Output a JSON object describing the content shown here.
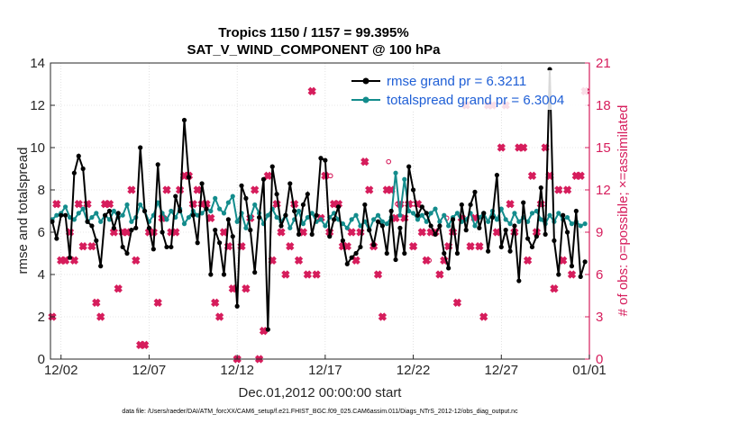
{
  "chart_data": {
    "type": "line",
    "title_line1": "Tropics 1150 / 1157 = 99.395%",
    "title_line2": "SAT_V_WIND_COMPONENT @ 100 hPa",
    "xlabel": "Dec.01,2012 00:00:00 start",
    "ylabel_left": "rmse and totalspread",
    "ylabel_right": "# of obs: o=possible; ×=assimilated",
    "footer": "data file: /Users/raeder/DAI/ATM_forcXX/CAM6_setup/f.e21.FHIST_BGC.f09_025.CAM6assim.011/Diags_NTrS_2012-12/obs_diag_output.nc",
    "xlim": [
      0.4,
      31.0
    ],
    "ylim_left": [
      0,
      14
    ],
    "ylim_right": [
      0,
      21
    ],
    "xtick_values": [
      1,
      6,
      11,
      16,
      21,
      26,
      31
    ],
    "xtick_labels": [
      "12/02",
      "12/07",
      "12/12",
      "12/17",
      "12/22",
      "12/27",
      "01/01"
    ],
    "yticks_left": [
      "0",
      "2",
      "4",
      "6",
      "8",
      "10",
      "12",
      "14"
    ],
    "yticks_right": [
      "0",
      "3",
      "6",
      "9",
      "12",
      "15",
      "18",
      "21"
    ],
    "colors": {
      "rmse": "#000000",
      "spread": "#138c8c",
      "obs": "#d61d5c",
      "legend_text": "#1f5fd6"
    },
    "series": [
      {
        "name": "rmse grand pr = 6.3211",
        "x": [
          0.5,
          0.75,
          1.0,
          1.25,
          1.5,
          1.75,
          2.0,
          2.25,
          2.5,
          2.75,
          3.0,
          3.25,
          3.5,
          3.75,
          4.0,
          4.25,
          4.5,
          4.75,
          5.0,
          5.25,
          5.5,
          5.75,
          6.0,
          6.25,
          6.5,
          6.75,
          7.0,
          7.25,
          7.5,
          7.75,
          8.0,
          8.25,
          8.5,
          8.75,
          9.0,
          9.25,
          9.5,
          9.75,
          10.0,
          10.25,
          10.5,
          10.75,
          11.0,
          11.25,
          11.5,
          11.75,
          12.0,
          12.25,
          12.5,
          12.75,
          13.0,
          13.25,
          13.5,
          13.75,
          14.0,
          14.25,
          14.5,
          14.75,
          15.0,
          15.25,
          15.5,
          15.75,
          16.0,
          16.25,
          16.5,
          16.75,
          17.0,
          17.25,
          17.5,
          17.75,
          18.0,
          18.25,
          18.5,
          18.75,
          19.0,
          19.25,
          19.5,
          19.75,
          20.0,
          20.25,
          20.5,
          20.75,
          21.0,
          21.25,
          21.5,
          21.75,
          22.0,
          22.25,
          22.5,
          22.75,
          23.0,
          23.25,
          23.5,
          23.75,
          24.0,
          24.25,
          24.5,
          24.75,
          25.0,
          25.25,
          25.5,
          25.75,
          26.0,
          26.25,
          26.5,
          26.75,
          27.0,
          27.25,
          27.5,
          27.75,
          28.0,
          28.25,
          28.5,
          28.75,
          29.0,
          29.25,
          29.5,
          29.75,
          30.0,
          30.25,
          30.5,
          30.75
        ],
        "values": [
          6.5,
          5.7,
          6.8,
          6.8,
          4.8,
          8.8,
          9.6,
          9.0,
          6.5,
          6.3,
          5.6,
          4.4,
          6.8,
          7.0,
          6.2,
          6.9,
          5.3,
          5.0,
          6.1,
          6.2,
          10.0,
          7.0,
          6.2,
          5.2,
          9.2,
          6.0,
          5.3,
          5.3,
          7.7,
          7.0,
          11.3,
          8.6,
          6.8,
          5.5,
          8.3,
          7.1,
          4.0,
          6.1,
          5.5,
          4.0,
          6.6,
          5.8,
          2.5,
          8.2,
          7.6,
          6.1,
          4.1,
          6.7,
          8.5,
          1.4,
          9.1,
          7.8,
          6.3,
          6.8,
          8.3,
          7.0,
          5.9,
          7.3,
          7.8,
          5.9,
          6.8,
          9.5,
          9.4,
          5.8,
          6.6,
          7.2,
          5.6,
          4.5,
          4.8,
          5.0,
          5.3,
          7.3,
          6.1,
          5.4,
          6.5,
          6.3,
          5.0,
          7.0,
          4.7,
          6.2,
          5.0,
          9.1,
          8.0,
          6.8,
          7.2,
          6.9,
          6.3,
          5.9,
          6.3,
          5.0,
          4.3,
          6.6,
          5.0,
          7.3,
          6.1,
          7.3,
          7.9,
          6.2,
          6.9,
          5.1,
          6.7,
          8.7,
          5.3,
          6.1,
          5.1,
          6.3,
          3.7,
          7.4,
          5.7,
          5.3,
          5.8,
          8.1,
          5.9,
          13.7,
          5.6,
          4.0,
          6.8,
          6.0,
          4.4,
          7.0,
          3.9,
          4.6
        ]
      },
      {
        "name": "totalspread grand pr = 6.3004",
        "x": [
          0.5,
          0.75,
          1.0,
          1.25,
          1.5,
          1.75,
          2.0,
          2.25,
          2.5,
          2.75,
          3.0,
          3.25,
          3.5,
          3.75,
          4.0,
          4.25,
          4.5,
          4.75,
          5.0,
          5.25,
          5.5,
          5.75,
          6.0,
          6.25,
          6.5,
          6.75,
          7.0,
          7.25,
          7.5,
          7.75,
          8.0,
          8.25,
          8.5,
          8.75,
          9.0,
          9.25,
          9.5,
          9.75,
          10.0,
          10.25,
          10.5,
          10.75,
          11.0,
          11.25,
          11.5,
          11.75,
          12.0,
          12.25,
          12.5,
          12.75,
          13.0,
          13.25,
          13.5,
          13.75,
          14.0,
          14.25,
          14.5,
          14.75,
          15.0,
          15.25,
          15.5,
          15.75,
          16.0,
          16.25,
          16.5,
          16.75,
          17.0,
          17.25,
          17.5,
          17.75,
          18.0,
          18.25,
          18.5,
          18.75,
          19.0,
          19.25,
          19.5,
          19.75,
          20.0,
          20.25,
          20.5,
          20.75,
          21.0,
          21.25,
          21.5,
          21.75,
          22.0,
          22.25,
          22.5,
          22.75,
          23.0,
          23.25,
          23.5,
          23.75,
          24.0,
          24.25,
          24.5,
          24.75,
          25.0,
          25.25,
          25.5,
          25.75,
          26.0,
          26.25,
          26.5,
          26.75,
          27.0,
          27.25,
          27.5,
          27.75,
          28.0,
          28.25,
          28.5,
          28.75,
          29.0,
          29.25,
          29.5,
          29.75,
          30.0,
          30.25,
          30.5,
          30.75
        ],
        "values": [
          6.6,
          6.8,
          6.9,
          7.2,
          6.7,
          6.6,
          6.9,
          7.1,
          6.5,
          6.7,
          6.9,
          6.5,
          6.8,
          6.6,
          7.0,
          6.7,
          6.8,
          7.3,
          6.5,
          6.7,
          7.3,
          7.0,
          6.5,
          6.8,
          7.4,
          6.9,
          6.6,
          7.0,
          6.7,
          7.1,
          6.4,
          6.7,
          7.0,
          6.8,
          6.9,
          7.1,
          7.0,
          7.6,
          7.1,
          6.9,
          7.4,
          7.7,
          6.5,
          6.9,
          6.2,
          6.7,
          7.3,
          6.9,
          6.4,
          6.8,
          7.1,
          6.7,
          6.5,
          6.8,
          6.2,
          6.6,
          7.0,
          6.4,
          6.7,
          6.9,
          6.5,
          6.6,
          6.3,
          6.7,
          6.9,
          6.6,
          6.4,
          6.2,
          6.6,
          6.8,
          6.3,
          6.5,
          6.1,
          6.6,
          6.8,
          6.5,
          6.4,
          6.7,
          8.8,
          6.8,
          8.5,
          7.0,
          6.9,
          6.6,
          6.8,
          6.5,
          6.9,
          7.1,
          6.5,
          6.8,
          6.3,
          6.7,
          6.9,
          6.5,
          6.6,
          6.9,
          6.3,
          6.7,
          6.9,
          6.5,
          7.0,
          6.6,
          7.1,
          6.6,
          6.4,
          6.9,
          6.5,
          6.7,
          6.5,
          6.9,
          7.0,
          6.6,
          6.4,
          6.8,
          6.5,
          6.9,
          6.6,
          6.7,
          6.4,
          6.5,
          6.3,
          6.4
        ]
      },
      {
        "name": "obs_assimilated",
        "x": [
          0.5,
          0.75,
          1.0,
          1.25,
          1.5,
          1.75,
          2.0,
          2.25,
          2.5,
          2.75,
          3.0,
          3.25,
          3.5,
          3.75,
          4.0,
          4.25,
          4.5,
          4.75,
          5.0,
          5.25,
          5.5,
          5.75,
          6.0,
          6.25,
          6.5,
          6.75,
          7.0,
          7.25,
          7.5,
          7.75,
          8.0,
          8.25,
          8.5,
          8.75,
          9.0,
          9.25,
          9.5,
          9.75,
          10.0,
          10.25,
          10.5,
          10.75,
          11.0,
          11.25,
          11.5,
          11.75,
          12.0,
          12.25,
          12.5,
          12.75,
          13.0,
          13.25,
          13.5,
          13.75,
          14.0,
          14.25,
          14.5,
          14.75,
          15.0,
          15.25,
          15.5,
          15.75,
          16.0,
          16.25,
          16.5,
          16.75,
          17.0,
          17.25,
          17.5,
          17.75,
          18.0,
          18.25,
          18.5,
          18.75,
          19.0,
          19.25,
          19.5,
          19.75,
          20.0,
          20.25,
          20.5,
          20.75,
          21.0,
          21.25,
          21.5,
          21.75,
          22.0,
          22.25,
          22.5,
          22.75,
          23.0,
          23.25,
          23.5,
          23.75,
          24.0,
          24.25,
          24.5,
          24.75,
          25.0,
          25.25,
          25.5,
          25.75,
          26.0,
          26.25,
          26.5,
          26.75,
          27.0,
          27.25,
          27.5,
          27.75,
          28.0,
          28.25,
          28.5,
          28.75,
          29.0,
          29.25,
          29.5,
          29.75,
          30.0,
          30.25,
          30.5,
          30.75
        ],
        "values": [
          3,
          11,
          7,
          7,
          9,
          7,
          11,
          8,
          11,
          8,
          4,
          3,
          11,
          11,
          9,
          5,
          9,
          9,
          12,
          7,
          1,
          1,
          9,
          9,
          4,
          10,
          12,
          9,
          9,
          12,
          13,
          13,
          11,
          12,
          11,
          11,
          10,
          4,
          3,
          9,
          8,
          5,
          0,
          8,
          5,
          10,
          12,
          0,
          2,
          13,
          7,
          11,
          9,
          6,
          8,
          11,
          7,
          9,
          6,
          19,
          6,
          10,
          13,
          9,
          11,
          11,
          8,
          8,
          9,
          7,
          9,
          14,
          12,
          8,
          6,
          3,
          12,
          12,
          10,
          11,
          10,
          11,
          8,
          11,
          9,
          7,
          9,
          9,
          6,
          7,
          8,
          9,
          4,
          10,
          18,
          8,
          10,
          8,
          3,
          18,
          18,
          9,
          15,
          18,
          11,
          9,
          15,
          15,
          7,
          13,
          9,
          11,
          15,
          13,
          5,
          12,
          7,
          12,
          6,
          13,
          13,
          19
        ]
      },
      {
        "name": "obs_possible",
        "x": [
          0.5,
          0.75,
          1.0,
          1.25,
          1.5,
          1.75,
          2.0,
          2.25,
          2.5,
          2.75,
          3.0,
          3.25,
          3.5,
          3.75,
          4.0,
          4.25,
          4.5,
          4.75,
          5.0,
          5.25,
          5.5,
          5.75,
          6.0,
          6.25,
          6.5,
          6.75,
          7.0,
          7.25,
          7.5,
          7.75,
          8.0,
          8.25,
          8.5,
          8.75,
          9.0,
          9.25,
          9.5,
          9.75,
          10.0,
          10.25,
          10.5,
          10.75,
          11.0,
          11.25,
          11.5,
          11.75,
          12.0,
          12.25,
          12.5,
          12.75,
          13.0,
          13.25,
          13.5,
          13.75,
          14.0,
          14.25,
          14.5,
          14.75,
          15.0,
          15.25,
          15.5,
          15.75,
          16.0,
          16.25,
          16.5,
          16.75,
          17.0,
          17.25,
          17.5,
          17.75,
          18.0,
          18.25,
          18.5,
          18.75,
          19.0,
          19.25,
          19.5,
          19.75,
          20.0,
          20.25,
          20.5,
          20.75,
          21.0,
          21.25,
          21.5,
          21.75,
          22.0,
          22.25,
          22.5,
          22.75,
          23.0,
          23.25,
          23.5,
          23.75,
          24.0,
          24.25,
          24.5,
          24.75,
          25.0,
          25.25,
          25.5,
          25.75,
          26.0,
          26.25,
          26.5,
          26.75,
          27.0,
          27.25,
          27.5,
          27.75,
          28.0,
          28.25,
          28.5,
          28.75,
          29.0,
          29.25,
          29.5,
          29.75,
          30.0,
          30.25,
          30.5,
          30.75
        ],
        "values": [
          3,
          11,
          7,
          7,
          9,
          7,
          11,
          8,
          11,
          8,
          4,
          3,
          11,
          11,
          9,
          5,
          9,
          9,
          12,
          7,
          1,
          1,
          9,
          9,
          4,
          10,
          12,
          9,
          9,
          12,
          13,
          13,
          11,
          12,
          11,
          11,
          10,
          4,
          3,
          9,
          8,
          5,
          0,
          8,
          5,
          10,
          12,
          0,
          2,
          13,
          7,
          11,
          9,
          6,
          8,
          11,
          7,
          9,
          6,
          19,
          6,
          10,
          13,
          9,
          11,
          11,
          8,
          8,
          9,
          7,
          9,
          14,
          12,
          8,
          6,
          3,
          12,
          12,
          10,
          11,
          10,
          11,
          8,
          11,
          9,
          7,
          9,
          9,
          6,
          7,
          8,
          9,
          4,
          10,
          18,
          8,
          10,
          8,
          3,
          18,
          18,
          9,
          15,
          18,
          11,
          9,
          15,
          15,
          7,
          13,
          9,
          11,
          15,
          13,
          5,
          12,
          7,
          12,
          6,
          13,
          13,
          19
        ]
      }
    ],
    "extra_possible": [
      {
        "x": 6.9,
        "v": 10
      },
      {
        "x": 16.3,
        "v": 13
      },
      {
        "x": 19.6,
        "v": 14
      },
      {
        "x": 20.1,
        "v": 11
      },
      {
        "x": 21.0,
        "v": 11
      },
      {
        "x": 21.9,
        "v": 7
      },
      {
        "x": 22.9,
        "v": 10
      },
      {
        "x": 29.4,
        "v": 7
      }
    ]
  }
}
